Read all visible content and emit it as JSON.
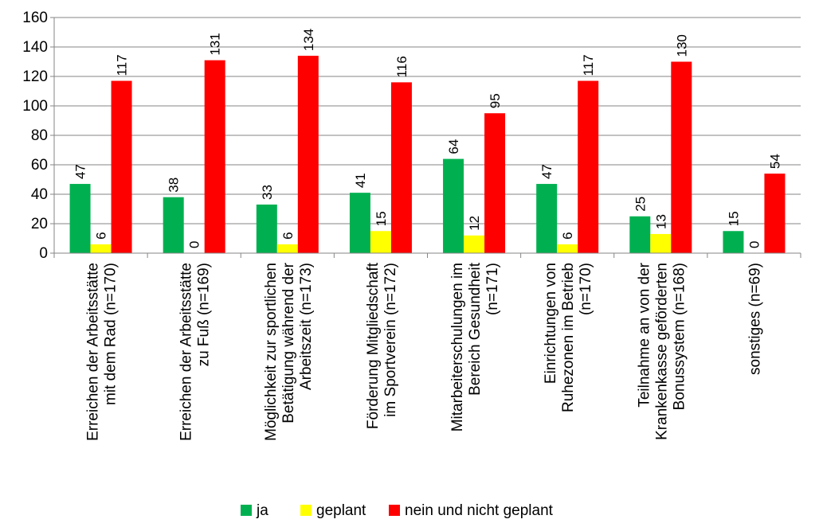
{
  "chart_data": {
    "type": "bar",
    "categories": [
      [
        "Erreichen der Arbeitsstätte",
        "mit dem Rad (n=170)"
      ],
      [
        "Erreichen der Arbeitsstätte",
        "zu Fuß (n=169)"
      ],
      [
        "Möglichkeit zur sportlichen",
        "Betätigung während der",
        "Arbeitszeit (n=173)"
      ],
      [
        "Förderung Mitgliedschaft",
        "im Sportverein (n=172)"
      ],
      [
        "Mitarbeiterschulungen im",
        "Bereich Gesundheit",
        "(n=171)"
      ],
      [
        "Einrichtungen von",
        "Ruhezonen im Betrieb",
        "(n=170)"
      ],
      [
        "Teilnahme an von der",
        "Krankenkasse geförderten",
        "Bonussystem (n=168)"
      ],
      [
        "sonstiges (n=69)"
      ]
    ],
    "series": [
      {
        "name": "ja",
        "color": "#00b050",
        "values": [
          47,
          38,
          33,
          41,
          64,
          47,
          25,
          15
        ]
      },
      {
        "name": "geplant",
        "color": "#ffff00",
        "values": [
          6,
          0,
          6,
          15,
          12,
          6,
          13,
          0
        ]
      },
      {
        "name": "nein und nicht geplant",
        "color": "#ff0000",
        "values": [
          117,
          131,
          134,
          116,
          95,
          117,
          130,
          54
        ]
      }
    ],
    "ylim": [
      0,
      160
    ],
    "yticks": [
      0,
      20,
      40,
      60,
      80,
      100,
      120,
      140,
      160
    ],
    "grid": true,
    "legend_position": "bottom",
    "gridline_color": "#868686"
  }
}
